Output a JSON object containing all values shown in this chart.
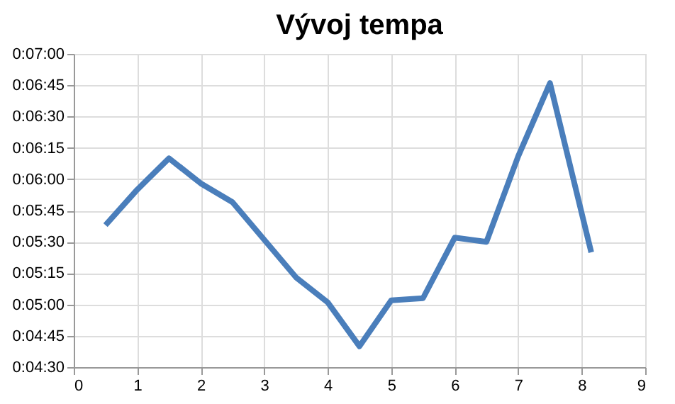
{
  "chart_data": {
    "type": "line",
    "title": "Vývoj tempa",
    "x": [
      0.5,
      1,
      1.5,
      2,
      2.5,
      3,
      3.5,
      4,
      4.5,
      5,
      5.5,
      6,
      6.5,
      7,
      7.5,
      8.15
    ],
    "series": [
      {
        "color": "#4a7ebb",
        "values": [
          338,
          355,
          370,
          358,
          349,
          331,
          313,
          301,
          280,
          302,
          303,
          332,
          330,
          371,
          406,
          325
        ]
      }
    ],
    "xlim": [
      0,
      9
    ],
    "xticks": [
      0,
      1,
      2,
      3,
      4,
      5,
      6,
      7,
      8,
      9
    ],
    "ylim": [
      270,
      420
    ],
    "yticks": [
      {
        "value": 270,
        "label": "0:04:30"
      },
      {
        "value": 285,
        "label": "0:04:45"
      },
      {
        "value": 300,
        "label": "0:05:00"
      },
      {
        "value": 315,
        "label": "0:05:15"
      },
      {
        "value": 330,
        "label": "0:05:30"
      },
      {
        "value": 345,
        "label": "0:05:45"
      },
      {
        "value": 360,
        "label": "0:06:00"
      },
      {
        "value": 375,
        "label": "0:06:15"
      },
      {
        "value": 390,
        "label": "0:06:30"
      },
      {
        "value": 405,
        "label": "0:06:45"
      },
      {
        "value": 420,
        "label": "0:07:00"
      }
    ],
    "grid": true,
    "marker": "none",
    "line_style": "solid"
  }
}
